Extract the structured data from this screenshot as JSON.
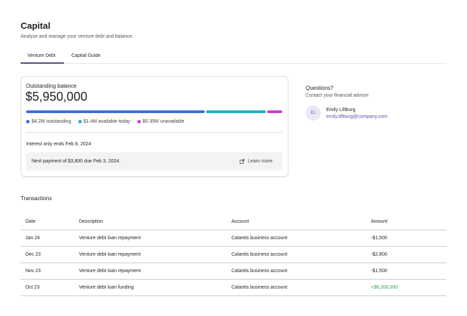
{
  "header": {
    "title": "Capital",
    "subtitle": "Analyze and manage your venture debt and balance."
  },
  "tabs": [
    "Venture Debt",
    "Capital Guide"
  ],
  "balance": {
    "label": "Outstanding balance",
    "amount": "$5,950,000",
    "segments": [
      {
        "label": "$4.2M outstanding",
        "value": 4.2,
        "color": "#3b6fd4"
      },
      {
        "label": "$1.4M available today",
        "value": 1.4,
        "color": "#1fb3c2"
      },
      {
        "label": "$0.35M unavailable",
        "value": 0.35,
        "color": "#c63fd6"
      }
    ],
    "interest": "Interest only ends Feb 8, 2024",
    "next_payment": "Next payment of $3,800 due Feb 3, 2024.",
    "link": "Learn more"
  },
  "advisor": {
    "heading": "Questions?",
    "subheading": "Contact your financial advisor",
    "initials": "EL",
    "name": "Emily Liftburg",
    "email": "emily.liftburg@company.com"
  },
  "transactions": {
    "title": "Transactions",
    "columns": [
      "Date",
      "Description",
      "Account",
      "Amount"
    ],
    "rows": [
      [
        "Jan 24",
        "Venture debt loan repayment",
        "Calantis business account",
        "-$1,500"
      ],
      [
        "Dec 23",
        "Venture debt loan repayment",
        "Calantis business account",
        "-$2,800"
      ],
      [
        "Nov 23",
        "Venture debt loan repayment",
        "Calantis business account",
        "-$1,500"
      ],
      [
        "Oct 23",
        "Venture debt loan funding",
        "Calantis business account",
        "+$6,200,000"
      ]
    ]
  }
}
